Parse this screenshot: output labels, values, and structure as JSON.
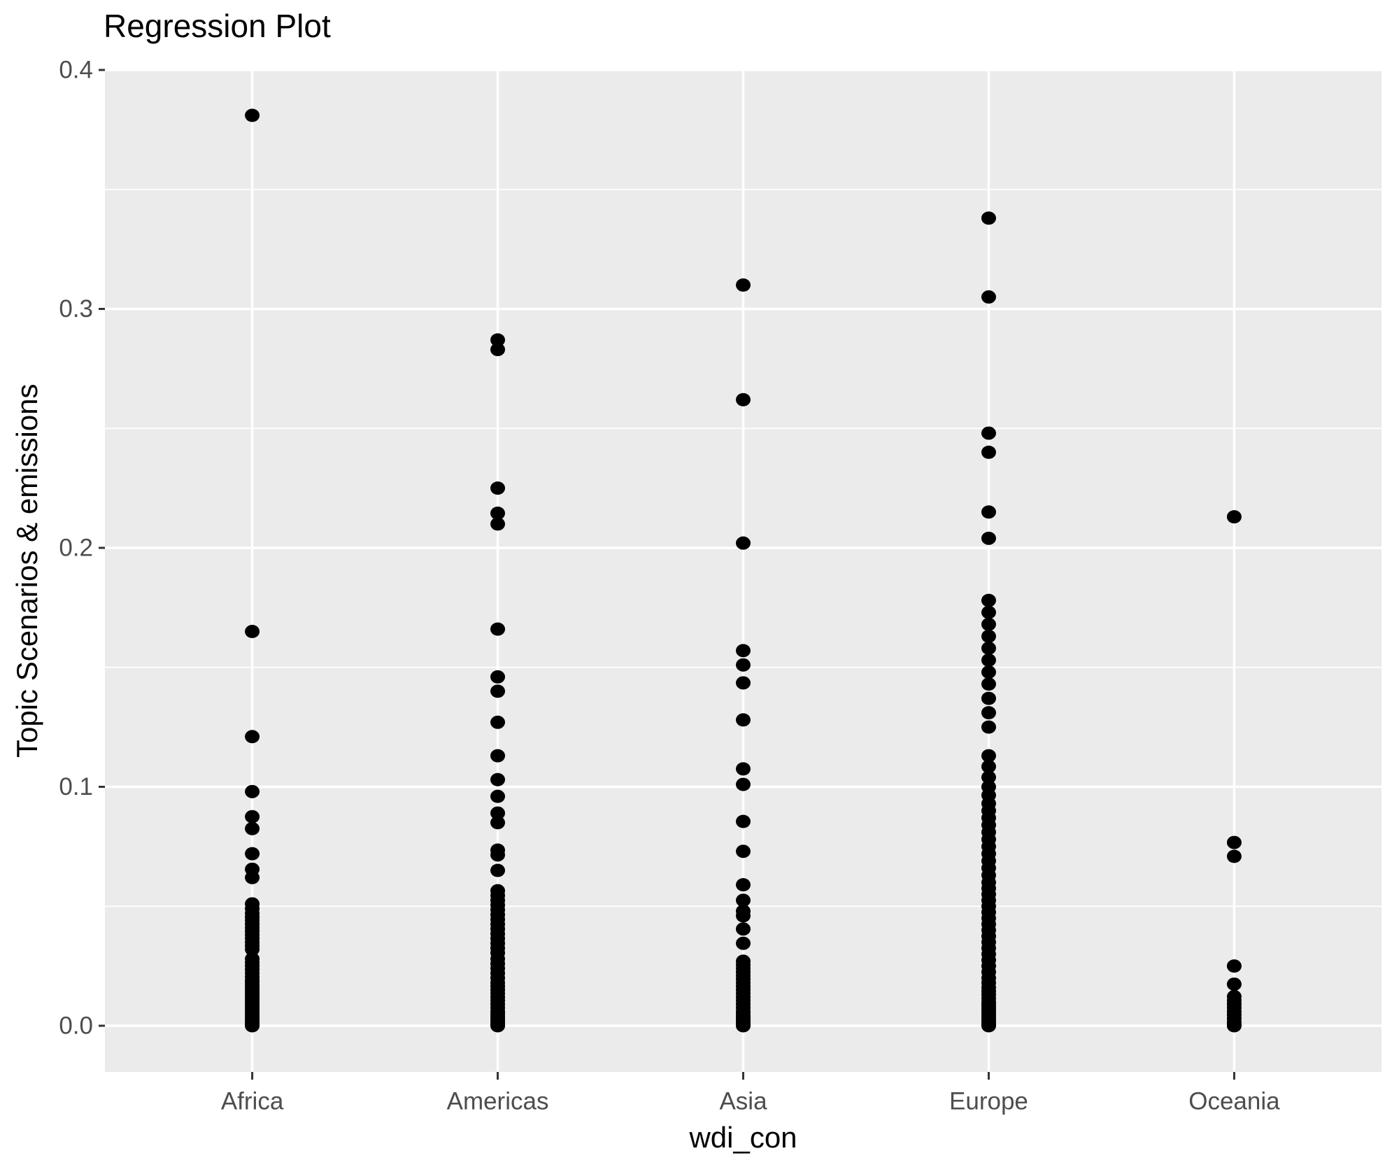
{
  "title": "Regression Plot",
  "chart_data": {
    "type": "scatter",
    "title": "Regression Plot",
    "xlabel": "wdi_con",
    "ylabel": "Topic Scenarios & emissions",
    "categories": [
      "Africa",
      "Americas",
      "Asia",
      "Europe",
      "Oceania"
    ],
    "y_ticks": [
      0.0,
      0.1,
      0.2,
      0.3,
      0.4
    ],
    "y_tick_labels": [
      "0.0",
      "0.1",
      "0.2",
      "0.3",
      "0.4"
    ],
    "y_minor_ticks": [
      0.05,
      0.15,
      0.25,
      0.35
    ],
    "ylim": [
      -0.019,
      0.4
    ],
    "grid": "major-and-minor-horizontal-plus-major-vertical",
    "legend": "none",
    "theme": {
      "panel_bg": "#EBEBEB",
      "grid_color": "#FFFFFF",
      "point_color": "#000000",
      "tick_color": "#333333",
      "tick_label_color": "#4D4D4D",
      "axis_title_color": "#000000",
      "title_color": "#000000"
    },
    "series": [
      {
        "name": "Africa",
        "values": [
          0.381,
          0.165,
          0.121,
          0.098,
          0.0875,
          0.0825,
          0.072,
          0.0655,
          0.062,
          0.051,
          0.049,
          0.047,
          0.0455,
          0.044,
          0.0425,
          0.041,
          0.0395,
          0.038,
          0.0365,
          0.035,
          0.0335,
          0.032,
          0.028,
          0.0265,
          0.025,
          0.0235,
          0.022,
          0.0205,
          0.019,
          0.018,
          0.017,
          0.016,
          0.015,
          0.014,
          0.013,
          0.012,
          0.011,
          0.01,
          0.009,
          0.008,
          0.007,
          0.006,
          0.005,
          0.004,
          0.003,
          0.002,
          0.001,
          0.0005,
          0
        ]
      },
      {
        "name": "Americas",
        "values": [
          0.287,
          0.283,
          0.225,
          0.2145,
          0.21,
          0.166,
          0.146,
          0.14,
          0.127,
          0.113,
          0.103,
          0.096,
          0.089,
          0.085,
          0.0735,
          0.0715,
          0.065,
          0.0565,
          0.0545,
          0.0525,
          0.0505,
          0.0485,
          0.0465,
          0.0445,
          0.0425,
          0.0405,
          0.0385,
          0.0365,
          0.0345,
          0.0325,
          0.0305,
          0.028,
          0.026,
          0.024,
          0.022,
          0.02,
          0.018,
          0.0165,
          0.015,
          0.0135,
          0.012,
          0.0105,
          0.009,
          0.0075,
          0.006,
          0.005,
          0.004,
          0.003,
          0.002,
          0.001,
          0.0005,
          0
        ]
      },
      {
        "name": "Asia",
        "values": [
          0.31,
          0.262,
          0.202,
          0.157,
          0.151,
          0.1435,
          0.128,
          0.1075,
          0.101,
          0.0855,
          0.073,
          0.059,
          0.0525,
          0.048,
          0.046,
          0.0405,
          0.0345,
          0.027,
          0.0255,
          0.024,
          0.0225,
          0.021,
          0.0195,
          0.018,
          0.0165,
          0.015,
          0.0135,
          0.012,
          0.0105,
          0.009,
          0.0075,
          0.006,
          0.005,
          0.004,
          0.003,
          0.002,
          0.001,
          0.0005,
          0
        ]
      },
      {
        "name": "Europe",
        "values": [
          0.338,
          0.305,
          0.248,
          0.24,
          0.215,
          0.204,
          0.178,
          0.173,
          0.168,
          0.163,
          0.158,
          0.153,
          0.148,
          0.143,
          0.137,
          0.131,
          0.125,
          0.113,
          0.1085,
          0.104,
          0.1,
          0.0965,
          0.093,
          0.09,
          0.087,
          0.084,
          0.081,
          0.078,
          0.075,
          0.072,
          0.069,
          0.066,
          0.063,
          0.06,
          0.0575,
          0.055,
          0.0525,
          0.05,
          0.0475,
          0.045,
          0.0425,
          0.04,
          0.0375,
          0.035,
          0.0325,
          0.03,
          0.0275,
          0.025,
          0.0225,
          0.02,
          0.018,
          0.016,
          0.0145,
          0.013,
          0.0115,
          0.01,
          0.009,
          0.008,
          0.007,
          0.006,
          0.005,
          0.004,
          0.003,
          0.002,
          0.001,
          0.0005,
          0
        ]
      },
      {
        "name": "Oceania",
        "values": [
          0.213,
          0.0767,
          0.0709,
          0.025,
          0.0174,
          0.0122,
          0.0105,
          0.009,
          0.0075,
          0.006,
          0.0045,
          0.003,
          0.0015,
          0.0005,
          0
        ]
      }
    ]
  }
}
